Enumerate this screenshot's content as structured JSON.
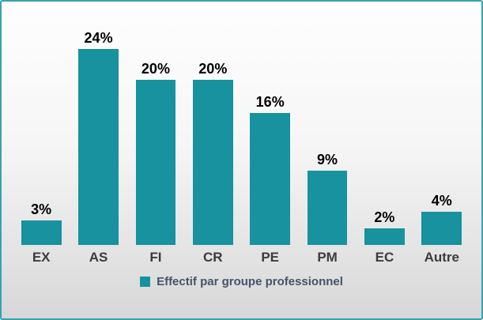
{
  "chart_data": {
    "type": "bar",
    "title": "",
    "categories": [
      "EX",
      "AS",
      "FI",
      "CR",
      "PE",
      "PM",
      "EC",
      "Autre"
    ],
    "values": [
      3,
      24,
      20,
      20,
      16,
      9,
      2,
      4
    ],
    "value_labels": [
      "3%",
      "24%",
      "20%",
      "20%",
      "16%",
      "9%",
      "2%",
      "4%"
    ],
    "legend": "Effectif par groupe professionnel",
    "legend_position": "bottom",
    "xlabel": "",
    "ylabel": "",
    "ylim": [
      0,
      26
    ],
    "grid": false,
    "bar_color": "#17929e",
    "value_label_color": "#000000",
    "category_label_color": "#3b3b3b",
    "legend_text_color": "#44546a",
    "frame_border_color": "#35a3ae"
  }
}
